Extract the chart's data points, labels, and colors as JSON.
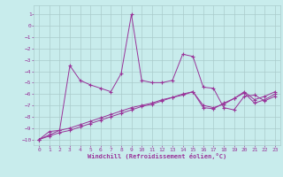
{
  "xlabel": "Windchill (Refroidissement éolien,°C)",
  "background_color": "#c8ecec",
  "grid_color": "#aacccc",
  "line_color": "#993399",
  "xlim": [
    -0.5,
    23.5
  ],
  "ylim": [
    -10.5,
    1.8
  ],
  "yticks": [
    1,
    0,
    -1,
    -2,
    -3,
    -4,
    -5,
    -6,
    -7,
    -8,
    -9,
    -10
  ],
  "xticks": [
    0,
    1,
    2,
    3,
    4,
    5,
    6,
    7,
    8,
    9,
    10,
    11,
    12,
    13,
    14,
    15,
    16,
    17,
    18,
    19,
    20,
    21,
    22,
    23
  ],
  "s1_x": [
    0,
    1,
    2,
    3,
    4,
    5,
    6,
    7,
    8,
    9,
    10,
    11,
    12,
    13,
    14,
    15,
    16,
    17,
    18,
    19,
    20,
    21,
    22,
    23
  ],
  "s1_y": [
    -10,
    -9.3,
    -9.2,
    -3.5,
    -4.8,
    -5.2,
    -5.5,
    -5.8,
    -4.2,
    1.0,
    -4.8,
    -5.0,
    -5.0,
    -4.8,
    -2.5,
    -2.7,
    -5.4,
    -5.5,
    -7.2,
    -7.4,
    -6.2,
    -6.1,
    -6.6,
    -6.2
  ],
  "s2_x": [
    0,
    1,
    2,
    3,
    4,
    5,
    6,
    7,
    8,
    9,
    10,
    11,
    12,
    13,
    14,
    15,
    16,
    17,
    18,
    19,
    20,
    21,
    22,
    23
  ],
  "s2_y": [
    -10,
    -9.6,
    -9.2,
    -9.0,
    -8.7,
    -8.4,
    -8.1,
    -7.8,
    -7.5,
    -7.2,
    -7.0,
    -6.8,
    -6.5,
    -6.3,
    -6.0,
    -5.8,
    -7.2,
    -7.3,
    -6.8,
    -6.4,
    -5.9,
    -6.8,
    -6.5,
    -6.0
  ],
  "s3_x": [
    0,
    1,
    2,
    3,
    4,
    5,
    6,
    7,
    8,
    9,
    10,
    11,
    12,
    13,
    14,
    15,
    16,
    17,
    18,
    19,
    20,
    21,
    22,
    23
  ],
  "s3_y": [
    -10,
    -9.7,
    -9.4,
    -9.2,
    -8.9,
    -8.6,
    -8.3,
    -8.0,
    -7.7,
    -7.4,
    -7.1,
    -6.9,
    -6.6,
    -6.3,
    -6.1,
    -5.8,
    -7.0,
    -7.2,
    -6.9,
    -6.4,
    -5.8,
    -6.5,
    -6.2,
    -5.8
  ]
}
